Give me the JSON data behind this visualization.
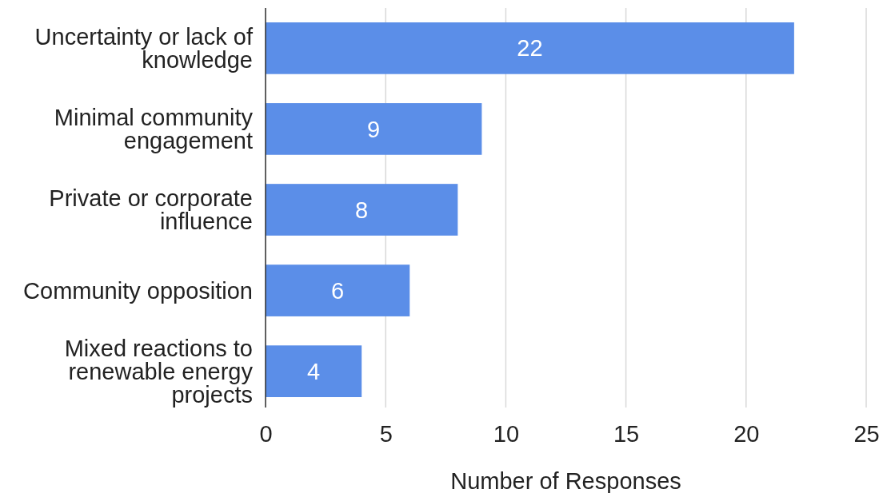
{
  "chart_data": {
    "type": "bar",
    "orientation": "horizontal",
    "xlabel": "Number of Responses",
    "categories": [
      "Uncertainty or lack of knowledge",
      "Minimal community engagement",
      "Private or corporate influence",
      "Community opposition",
      "Mixed reactions to renewable energy projects"
    ],
    "values": [
      22,
      9,
      8,
      6,
      4
    ],
    "color": "#5b8ee8",
    "xlim": [
      0,
      25
    ],
    "xticks": [
      0,
      5,
      10,
      15,
      20,
      25
    ],
    "grid": "x",
    "data_labels": true
  }
}
